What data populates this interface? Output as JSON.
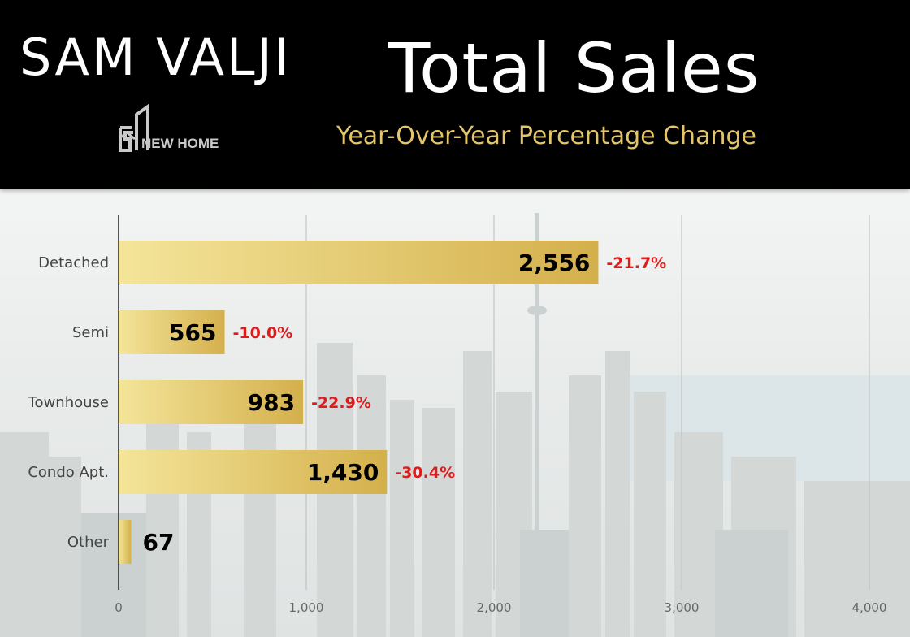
{
  "header": {
    "brand": "SAM VALJI",
    "logo_text": "NEW HOME",
    "title": "Total Sales",
    "subtitle": "Year-Over-Year Percentage Change"
  },
  "colors": {
    "header_bg": "#000000",
    "title": "#ffffff",
    "subtitle": "#e3c56a",
    "bar_light": "#f4e59a",
    "bar_dark": "#d4b04c",
    "change_negative": "#e01b1b"
  },
  "chart_data": {
    "type": "bar",
    "orientation": "horizontal",
    "categories": [
      "Detached",
      "Semi",
      "Townhouse",
      "Condo Apt.",
      "Other"
    ],
    "values": [
      2556,
      565,
      983,
      1430,
      67
    ],
    "value_labels": [
      "2,556",
      "565",
      "983",
      "1,430",
      "67"
    ],
    "yoy_change": [
      "-21.7%",
      "-10.0%",
      "-22.9%",
      "-30.4%",
      ""
    ],
    "xlim": [
      0,
      4000
    ],
    "xticks": [
      0,
      1000,
      2000,
      3000,
      4000
    ],
    "xtick_labels": [
      "0",
      "1,000",
      "2,000",
      "3,000",
      "4,000"
    ],
    "grid": true,
    "legend": "none"
  }
}
